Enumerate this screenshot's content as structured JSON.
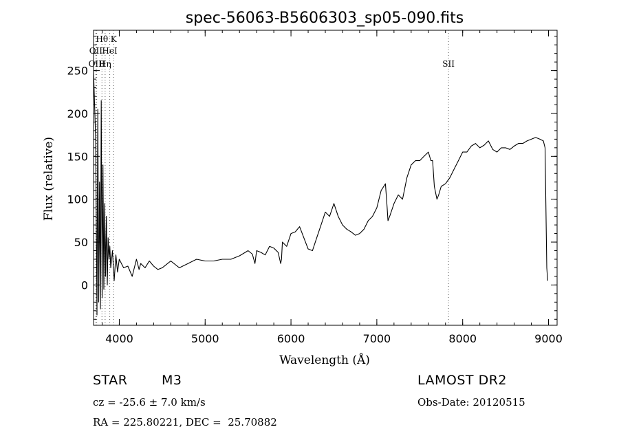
{
  "chart_data": {
    "type": "line",
    "title": "spec-56063-B5606303_sp05-090.fits",
    "xlabel": "Wavelength (Å)",
    "ylabel": "Flux (relative)",
    "xlim": [
      3700,
      9100
    ],
    "ylim": [
      -47,
      297
    ],
    "x_ticks": [
      4000,
      5000,
      6000,
      7000,
      8000,
      9000
    ],
    "y_ticks": [
      0,
      50,
      100,
      150,
      200,
      250
    ],
    "grid": false,
    "line_markers": [
      {
        "label": "Hθ",
        "wavelength": 3798,
        "row": 0
      },
      {
        "label": "K",
        "wavelength": 3934,
        "row": 0
      },
      {
        "label": "OII",
        "wavelength": 3727,
        "row": 1
      },
      {
        "label": "HeI",
        "wavelength": 3889,
        "row": 1
      },
      {
        "label": "OIII",
        "wavelength": 3737,
        "row": 2
      },
      {
        "label": "Hη",
        "wavelength": 3835,
        "row": 2
      },
      {
        "label": "SII",
        "wavelength": 7835,
        "row": 2
      }
    ],
    "series": [
      {
        "x": [
          3700,
          3725,
          3740,
          3750,
          3760,
          3770,
          3780,
          3790,
          3800,
          3810,
          3820,
          3830,
          3840,
          3850,
          3860,
          3870,
          3880,
          3890,
          3900,
          3920,
          3940,
          3960,
          3980,
          4000,
          4050,
          4100,
          4150,
          4200,
          4230,
          4250,
          4300,
          4350,
          4400,
          4450,
          4500,
          4600,
          4700,
          4800,
          4900,
          5000,
          5100,
          5200,
          5300,
          5400,
          5500,
          5550,
          5580,
          5600,
          5650,
          5700,
          5750,
          5800,
          5850,
          5880,
          5890,
          5900,
          5950,
          6000,
          6050,
          6100,
          6150,
          6200,
          6250,
          6300,
          6350,
          6400,
          6450,
          6500,
          6550,
          6600,
          6650,
          6700,
          6750,
          6800,
          6850,
          6900,
          6950,
          7000,
          7050,
          7100,
          7120,
          7130,
          7150,
          7200,
          7250,
          7300,
          7350,
          7400,
          7450,
          7500,
          7550,
          7600,
          7630,
          7650,
          7670,
          7700,
          7720,
          7750,
          7800,
          7850,
          7900,
          7950,
          8000,
          8050,
          8100,
          8150,
          8200,
          8250,
          8300,
          8350,
          8400,
          8450,
          8500,
          8550,
          8600,
          8650,
          8700,
          8750,
          8800,
          8850,
          8900,
          8940,
          8960,
          8980,
          8990
        ],
        "y": [
          250,
          170,
          -35,
          205,
          -20,
          120,
          -28,
          215,
          -15,
          140,
          -5,
          95,
          10,
          80,
          0,
          55,
          30,
          45,
          20,
          40,
          5,
          35,
          15,
          30,
          20,
          22,
          10,
          30,
          18,
          25,
          20,
          28,
          22,
          18,
          20,
          28,
          20,
          25,
          30,
          28,
          28,
          30,
          30,
          34,
          40,
          36,
          25,
          40,
          38,
          35,
          45,
          43,
          38,
          25,
          30,
          50,
          45,
          60,
          62,
          68,
          55,
          42,
          40,
          55,
          70,
          85,
          80,
          95,
          80,
          70,
          65,
          62,
          58,
          60,
          65,
          75,
          80,
          90,
          110,
          118,
          90,
          75,
          80,
          95,
          105,
          100,
          125,
          140,
          145,
          145,
          150,
          155,
          145,
          145,
          115,
          100,
          105,
          115,
          118,
          125,
          135,
          145,
          155,
          155,
          162,
          165,
          160,
          163,
          168,
          158,
          155,
          160,
          160,
          158,
          162,
          165,
          165,
          168,
          170,
          172,
          170,
          168,
          160,
          20,
          5
        ]
      }
    ]
  },
  "info": {
    "object_type": "STAR",
    "subclass": "M3",
    "survey": "LAMOST DR2",
    "cz_line": "cz = -25.6 ± 7.0 km/s",
    "obs_date_line": "Obs-Date: 20120515",
    "radec_line": "RA = 225.80221, DEC =  25.70882"
  }
}
